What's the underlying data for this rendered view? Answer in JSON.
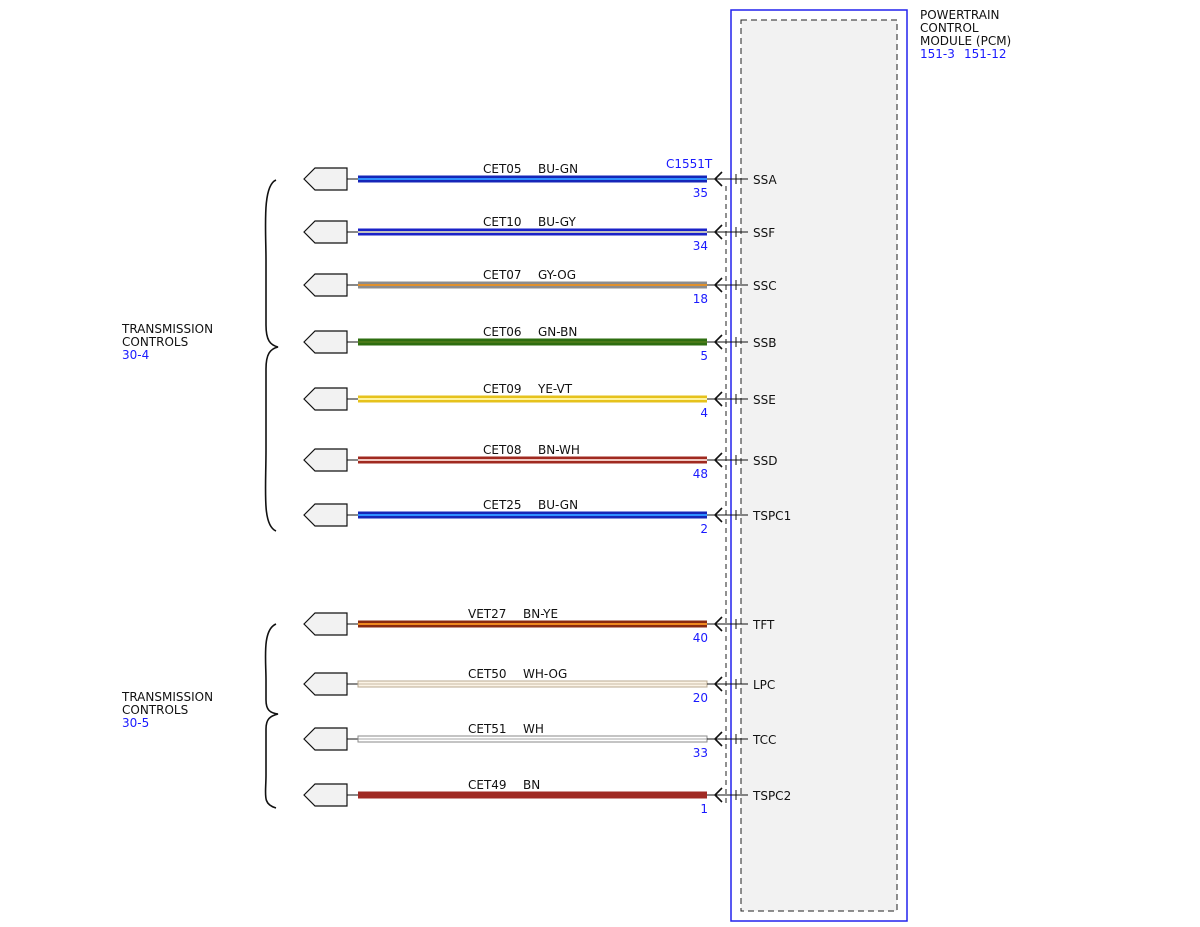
{
  "module": {
    "title_lines": [
      "POWERTRAIN",
      "CONTROL",
      "MODULE (PCM)"
    ],
    "refs": [
      "151-3",
      "151-12"
    ],
    "connector": "C1551T"
  },
  "groups": [
    {
      "lines": [
        "TRANSMISSION",
        "CONTROLS"
      ],
      "ref": "30-4"
    },
    {
      "lines": [
        "TRANSMISSION",
        "CONTROLS"
      ],
      "ref": "30-5"
    }
  ],
  "wires": [
    {
      "circuit": "CET05",
      "color_code": "BU-GN",
      "pin": "35",
      "signal": "SSA",
      "base": "#1626b8",
      "stripe": "#2f8fff",
      "thin": false
    },
    {
      "circuit": "CET10",
      "color_code": "BU-GY",
      "pin": "34",
      "signal": "SSF",
      "base": "#1a22c8",
      "stripe": "#c0c0c0",
      "thin": false
    },
    {
      "circuit": "CET07",
      "color_code": "GY-OG",
      "pin": "18",
      "signal": "SSC",
      "base": "#8c8c8c",
      "stripe": "#e0902c",
      "thin": false
    },
    {
      "circuit": "CET06",
      "color_code": "GN-BN",
      "pin": "5",
      "signal": "SSB",
      "base": "#2e6e10",
      "stripe": "#4a7a18",
      "thin": false
    },
    {
      "circuit": "CET09",
      "color_code": "YE-VT",
      "pin": "4",
      "signal": "SSE",
      "base": "#e6c21c",
      "stripe": "#fff4a0",
      "thin": false
    },
    {
      "circuit": "CET08",
      "color_code": "BN-WH",
      "pin": "48",
      "signal": "SSD",
      "base": "#a02a20",
      "stripe": "#f0c8c0",
      "thin": false
    },
    {
      "circuit": "CET25",
      "color_code": "BU-GN",
      "pin": "2",
      "signal": "TSPC1",
      "base": "#1626b8",
      "stripe": "#2f8fff",
      "thin": false
    },
    {
      "circuit": "VET27",
      "color_code": "BN-YE",
      "pin": "40",
      "signal": "TFT",
      "base": "#8a2a10",
      "stripe": "#f08a20",
      "thin": false
    },
    {
      "circuit": "CET50",
      "color_code": "WH-OG",
      "pin": "20",
      "signal": "LPC",
      "base": "#b8a890",
      "stripe": "#fbf3e6",
      "thin": true
    },
    {
      "circuit": "CET51",
      "color_code": "WH",
      "pin": "33",
      "signal": "TCC",
      "base": "#8a8a8a",
      "stripe": "#ffffff",
      "thin": true
    },
    {
      "circuit": "CET49",
      "color_code": "BN",
      "pin": "1",
      "signal": "TSPC2",
      "base": "#a02a24",
      "stripe": "#a02a24",
      "thin": false
    }
  ]
}
